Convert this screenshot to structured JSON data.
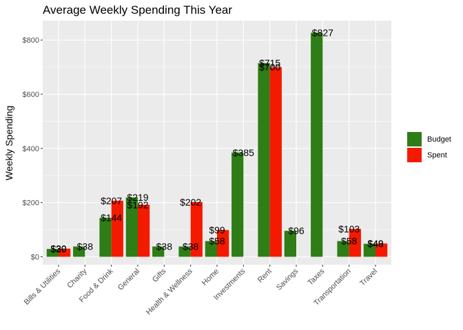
{
  "chart_data": {
    "type": "bar",
    "title": "Average Weekly Spending This Year",
    "xlabel": "",
    "ylabel": "Weekly Spending",
    "ylim": [
      0,
      880
    ],
    "yticks": [
      0,
      200,
      400,
      600,
      800
    ],
    "ytick_labels": [
      "$0",
      "$200",
      "$400",
      "$600",
      "$800"
    ],
    "grid": true,
    "legend_position": "right",
    "categories": [
      "Bills & Utilities",
      "Charity",
      "Food & Drink",
      "General",
      "Gifts",
      "Health & Wellness",
      "Home",
      "Investments",
      "Rent",
      "Savings",
      "Taxes",
      "Transportation",
      "Travel"
    ],
    "series": [
      {
        "name": "Budget",
        "color": "#2e7d17",
        "values": [
          29,
          38,
          144,
          219,
          38,
          38,
          58,
          385,
          715,
          96,
          827,
          58,
          48
        ],
        "labels": [
          "$29",
          "$38",
          "$144",
          "$219",
          "$38",
          "$38",
          "$58",
          "$385",
          "$715",
          "$96",
          "$827",
          "$58",
          "$48"
        ]
      },
      {
        "name": "Spent",
        "color": "#f41a00",
        "values": [
          30,
          null,
          207,
          192,
          null,
          202,
          99,
          null,
          700,
          null,
          null,
          103,
          49
        ],
        "labels": [
          "$30",
          null,
          "$207",
          "$192",
          null,
          "$202",
          "$99",
          null,
          "$700",
          null,
          null,
          "$103",
          "$49"
        ]
      }
    ]
  }
}
